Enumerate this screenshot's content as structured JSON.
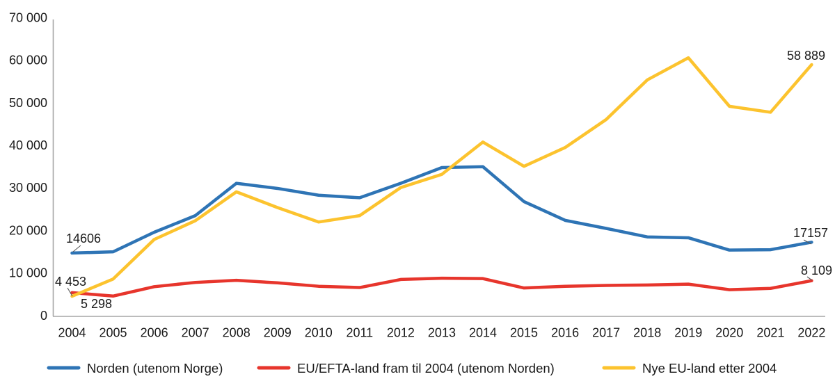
{
  "chart_data": {
    "type": "line",
    "x": [
      "2004",
      "2005",
      "2006",
      "2007",
      "2008",
      "2009",
      "2010",
      "2011",
      "2012",
      "2013",
      "2014",
      "2015",
      "2016",
      "2017",
      "2018",
      "2019",
      "2020",
      "2021",
      "2022"
    ],
    "series": [
      {
        "name": "Norden (utenom Norge)",
        "color": "#2E74B5",
        "values": [
          14606,
          14900,
          19500,
          23400,
          31000,
          29800,
          28200,
          27600,
          31000,
          34700,
          34900,
          26700,
          22300,
          20400,
          18400,
          18200,
          15300,
          15400,
          17157
        ]
      },
      {
        "name": "EU/EFTA-land fram til 2004 (utenom Norden)",
        "color": "#E7352C",
        "values": [
          5298,
          4500,
          6700,
          7700,
          8200,
          7600,
          6800,
          6500,
          8400,
          8700,
          8600,
          6400,
          6800,
          7000,
          7100,
          7300,
          6000,
          6300,
          8109
        ]
      },
      {
        "name": "Nye EU-land etter 2004",
        "color": "#FCC32E",
        "values": [
          4453,
          8500,
          17800,
          22200,
          29000,
          25300,
          21900,
          23400,
          30000,
          33100,
          40700,
          35000,
          39400,
          46000,
          55300,
          60500,
          49100,
          47700,
          58889
        ]
      }
    ],
    "ylim": [
      0,
      70000
    ],
    "yticks": [
      {
        "value": 0,
        "label": "0"
      },
      {
        "value": 10000,
        "label": "10 000"
      },
      {
        "value": 20000,
        "label": "20 000"
      },
      {
        "value": 30000,
        "label": "30 000"
      },
      {
        "value": 40000,
        "label": "40 000"
      },
      {
        "value": 50000,
        "label": "50 000"
      },
      {
        "value": 60000,
        "label": "60 000"
      },
      {
        "value": 70000,
        "label": "70 000"
      }
    ],
    "grid": false,
    "legend_position": "bottom",
    "annotations": [
      {
        "text": "14606",
        "series": "Norden (utenom Norge)",
        "year": "2004",
        "value": 14606
      },
      {
        "text": "4 453",
        "series": "Nye EU-land etter 2004",
        "year": "2004",
        "value": 4453
      },
      {
        "text": "5 298",
        "series": "EU/EFTA-land fram til 2004 (utenom Norden)",
        "year": "2004",
        "value": 5298
      },
      {
        "text": "58 889",
        "series": "Nye EU-land etter 2004",
        "year": "2022",
        "value": 58889
      },
      {
        "text": "17157",
        "series": "Norden (utenom Norge)",
        "year": "2022",
        "value": 17157
      },
      {
        "text": "8 109",
        "series": "EU/EFTA-land fram til 2004 (utenom Norden)",
        "year": "2022",
        "value": 8109
      }
    ],
    "colors": {
      "axis": "#A6A6A6",
      "text": "#1A1A1A",
      "leader_line": "#595959"
    }
  }
}
